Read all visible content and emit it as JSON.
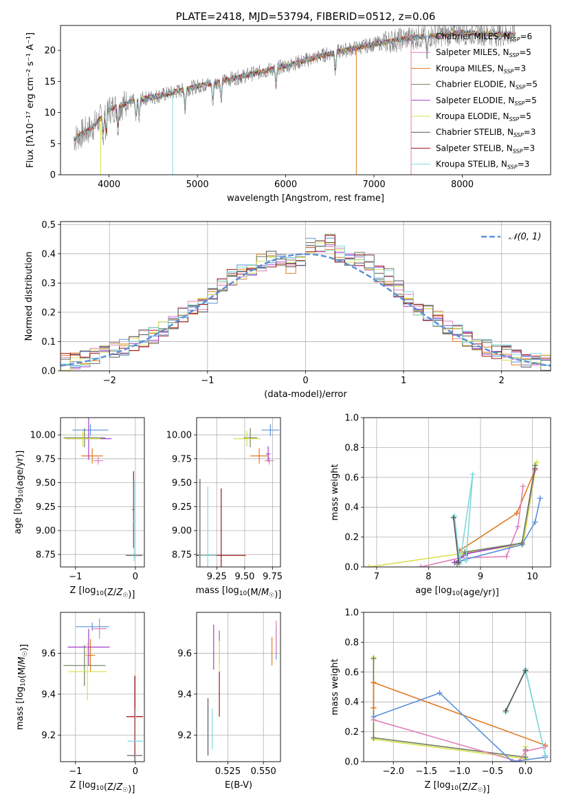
{
  "colors": {
    "chabrier_miles": "#5a8fdc",
    "salpeter_miles": "#e07fb8",
    "kroupa_miles": "#e07a1f",
    "chabrier_elodie": "#6f7f5f",
    "salpeter_elodie": "#a03cc8",
    "kroupa_elodie": "#d8e04a",
    "chabrier_stelib": "#555555",
    "salpeter_stelib": "#a01010",
    "kroupa_stelib": "#7fd8dc",
    "gaussian": "#5b8fd8",
    "grid": "#b0b0b0"
  },
  "chart_data": [
    {
      "type": "line",
      "title": "PLATE=2418, MJD=53794, FIBERID=0512, z=0.06",
      "xlabel": "wavelength [Angstrom, rest frame]",
      "ylabel": "Flux [fλ10⁻¹⁷ erg cm⁻² s⁻¹ A⁻¹]",
      "xlim": [
        3450,
        9000
      ],
      "ylim": [
        0,
        24
      ],
      "xticks": [
        "4000",
        "5000",
        "6000",
        "7000",
        "8000"
      ],
      "yticks": [
        "0",
        "5",
        "10",
        "15",
        "20"
      ],
      "continuum": [
        [
          3600,
          5.8
        ],
        [
          3800,
          7.5
        ],
        [
          4000,
          10.5
        ],
        [
          4300,
          12.0
        ],
        [
          4600,
          12.8
        ],
        [
          5000,
          14.2
        ],
        [
          5500,
          15.8
        ],
        [
          6000,
          17.5
        ],
        [
          6500,
          19.5
        ],
        [
          7000,
          21.0
        ],
        [
          7400,
          22.0
        ],
        [
          8000,
          22.8
        ],
        [
          8600,
          22.5
        ]
      ],
      "legend": [
        {
          "label": "Chabrier MILES, N",
          "sub": "SSP",
          "tail": "=6",
          "color_key": "chabrier_miles"
        },
        {
          "label": "Salpeter MILES, N",
          "sub": "SSP",
          "tail": "=5",
          "color_key": "salpeter_miles"
        },
        {
          "label": "Kroupa MILES, N",
          "sub": "SSP",
          "tail": "=3",
          "color_key": "kroupa_miles"
        },
        {
          "label": "Chabrier ELODIE, N",
          "sub": "SSP",
          "tail": "=5",
          "color_key": "chabrier_elodie"
        },
        {
          "label": "Salpeter ELODIE, N",
          "sub": "SSP",
          "tail": "=5",
          "color_key": "salpeter_elodie"
        },
        {
          "label": "Kroupa ELODIE, N",
          "sub": "SSP",
          "tail": "=5",
          "color_key": "kroupa_elodie"
        },
        {
          "label": "Chabrier STELIB, N",
          "sub": "SSP",
          "tail": "=3",
          "color_key": "chabrier_stelib"
        },
        {
          "label": "Salpeter STELIB, N",
          "sub": "SSP",
          "tail": "=3",
          "color_key": "salpeter_stelib"
        },
        {
          "label": "Kroupa STELIB, N",
          "sub": "SSP",
          "tail": "=3",
          "color_key": "kroupa_stelib"
        }
      ]
    },
    {
      "type": "step",
      "xlabel": "(data-model)/error",
      "ylabel": "Normed distribution",
      "xlim": [
        -2.5,
        2.5
      ],
      "ylim": [
        0,
        0.51
      ],
      "xticks": [
        "−2",
        "−1",
        "0",
        "1",
        "2"
      ],
      "yticks": [
        "0.0",
        "0.1",
        "0.2",
        "0.3",
        "0.4",
        "0.5"
      ],
      "grid": true,
      "bins": [
        -2.5,
        -2.4,
        -2.3,
        -2.2,
        -2.1,
        -2.0,
        -1.9,
        -1.8,
        -1.7,
        -1.6,
        -1.5,
        -1.4,
        -1.3,
        -1.2,
        -1.1,
        -1.0,
        -0.9,
        -0.8,
        -0.7,
        -0.6,
        -0.5,
        -0.4,
        -0.3,
        -0.2,
        -0.1,
        0.0,
        0.1,
        0.2,
        0.3,
        0.4,
        0.5,
        0.6,
        0.7,
        0.8,
        0.9,
        1.0,
        1.1,
        1.2,
        1.3,
        1.4,
        1.5,
        1.6,
        1.7,
        1.8,
        1.9,
        2.0,
        2.1,
        2.2,
        2.3,
        2.4,
        2.5
      ],
      "histogram": [
        0.03,
        0.035,
        0.04,
        0.05,
        0.06,
        0.07,
        0.08,
        0.09,
        0.11,
        0.12,
        0.14,
        0.16,
        0.19,
        0.21,
        0.23,
        0.26,
        0.29,
        0.32,
        0.34,
        0.35,
        0.37,
        0.38,
        0.37,
        0.36,
        0.38,
        0.43,
        0.42,
        0.44,
        0.4,
        0.38,
        0.38,
        0.37,
        0.33,
        0.32,
        0.28,
        0.25,
        0.22,
        0.2,
        0.18,
        0.15,
        0.13,
        0.11,
        0.1,
        0.08,
        0.07,
        0.06,
        0.05,
        0.04,
        0.035,
        0.03
      ],
      "legend": [
        {
          "label": "𝒩(0, 1)",
          "color_key": "gaussian"
        }
      ]
    },
    {
      "type": "scatter",
      "xlabel": "Z [log10(Z/Z☉)]",
      "ylabel": "age  [log10(age/yr)]",
      "xlim": [
        -1.25,
        0.15
      ],
      "ylim": [
        8.62,
        10.18
      ],
      "xticks": [
        "−1",
        "0"
      ],
      "yticks": [
        "8.75",
        "9.00",
        "9.25",
        "9.50",
        "9.75",
        "10.00"
      ],
      "grid": true,
      "points": [
        {
          "color_key": "chabrier_miles",
          "x": -0.75,
          "y": 10.05,
          "xerr": 0.3,
          "yerr": 0.06
        },
        {
          "color_key": "salpeter_miles",
          "x": -0.62,
          "y": 9.73,
          "xerr": 0.08,
          "yerr": 0.04
        },
        {
          "color_key": "kroupa_miles",
          "x": -0.72,
          "y": 9.78,
          "xerr": 0.18,
          "yerr": 0.08
        },
        {
          "color_key": "chabrier_elodie",
          "x": -0.85,
          "y": 9.97,
          "xerr": 0.35,
          "yerr": 0.1
        },
        {
          "color_key": "salpeter_elodie",
          "x": -0.78,
          "y": 9.96,
          "xerr": 0.38,
          "yerr": 0.22
        },
        {
          "color_key": "kroupa_elodie",
          "x": -0.88,
          "y": 9.96,
          "xerr": 0.3,
          "yerr": 0.08
        },
        {
          "color_key": "chabrier_stelib",
          "x": -0.02,
          "y": 8.74,
          "xerr": 0.14,
          "yerr": 0.02
        },
        {
          "color_key": "salpeter_stelib",
          "x": -0.03,
          "y": 9.22,
          "xerr": 0.02,
          "yerr": 0.4
        },
        {
          "color_key": "kroupa_stelib",
          "x": -0.02,
          "y": 9.1,
          "xerr": 0.02,
          "yerr": 0.42
        }
      ]
    },
    {
      "type": "scatter",
      "xlabel": "mass [log10(M/M☉)]",
      "ylabel": "",
      "xlim": [
        9.07,
        9.82
      ],
      "ylim": [
        8.62,
        10.18
      ],
      "xticks": [
        "9.25",
        "9.50",
        "9.75"
      ],
      "yticks": [
        "8.75",
        "9.00",
        "9.25",
        "9.50",
        "9.75",
        "10.00"
      ],
      "grid": true,
      "points": [
        {
          "color_key": "chabrier_miles",
          "x": 9.73,
          "y": 10.05,
          "xerr": 0.08,
          "yerr": 0.06
        },
        {
          "color_key": "salpeter_miles",
          "x": 9.72,
          "y": 9.73,
          "xerr": 0.04,
          "yerr": 0.04
        },
        {
          "color_key": "kroupa_miles",
          "x": 9.63,
          "y": 9.78,
          "xerr": 0.08,
          "yerr": 0.08
        },
        {
          "color_key": "chabrier_elodie",
          "x": 9.55,
          "y": 9.97,
          "xerr": 0.06,
          "yerr": 0.1
        },
        {
          "color_key": "salpeter_elodie",
          "x": 9.71,
          "y": 9.8,
          "xerr": 0.02,
          "yerr": 0.08
        },
        {
          "color_key": "kroupa_elodie",
          "x": 9.52,
          "y": 9.96,
          "xerr": 0.12,
          "yerr": 0.08
        },
        {
          "color_key": "chabrier_stelib",
          "x": 9.1,
          "y": 8.74,
          "xerr": 0.02,
          "yerr": 0.8
        },
        {
          "color_key": "salpeter_stelib",
          "x": 9.29,
          "y": 8.74,
          "xerr": 0.22,
          "yerr": 0.7
        },
        {
          "color_key": "kroupa_stelib",
          "x": 9.17,
          "y": 8.74,
          "xerr": 0.08,
          "yerr": 0.72
        }
      ]
    },
    {
      "type": "line",
      "xlabel": "age  [log10(age/yr)]",
      "ylabel": "mass weight",
      "xlim": [
        6.75,
        10.35
      ],
      "ylim": [
        0,
        1
      ],
      "xticks": [
        "7",
        "8",
        "9",
        "10"
      ],
      "yticks": [
        "0.0",
        "0.2",
        "0.4",
        "0.6",
        "0.8",
        "1.0"
      ],
      "grid": true,
      "series": [
        {
          "color_key": "kroupa_elodie",
          "points": [
            [
              6.85,
              0.0
            ],
            [
              9.82,
              0.15
            ],
            [
              10.08,
              0.7
            ]
          ]
        },
        {
          "color_key": "kroupa_miles",
          "points": [
            [
              8.6,
              0.11
            ],
            [
              9.7,
              0.36
            ],
            [
              10.05,
              0.65
            ]
          ]
        },
        {
          "color_key": "salpeter_miles",
          "points": [
            [
              7.85,
              0.0
            ],
            [
              8.6,
              0.06
            ],
            [
              9.5,
              0.07
            ],
            [
              9.72,
              0.27
            ],
            [
              9.82,
              0.54
            ]
          ]
        },
        {
          "color_key": "chabrier_miles",
          "points": [
            [
              8.6,
              0.04
            ],
            [
              9.8,
              0.15
            ],
            [
              10.05,
              0.3
            ],
            [
              10.15,
              0.46
            ]
          ]
        },
        {
          "color_key": "salpeter_elodie",
          "points": [
            [
              8.5,
              0.03
            ],
            [
              8.75,
              0.09
            ],
            [
              9.8,
              0.16
            ],
            [
              10.05,
              0.66
            ]
          ]
        },
        {
          "color_key": "chabrier_elodie",
          "points": [
            [
              8.55,
              0.02
            ],
            [
              8.7,
              0.1
            ],
            [
              9.8,
              0.16
            ],
            [
              10.05,
              0.68
            ]
          ]
        },
        {
          "color_key": "kroupa_stelib",
          "points": [
            [
              8.5,
              0.34
            ],
            [
              8.6,
              0.02
            ],
            [
              8.85,
              0.62
            ],
            [
              8.72,
              0.04
            ]
          ]
        },
        {
          "color_key": "chabrier_stelib",
          "points": [
            [
              8.48,
              0.33
            ],
            [
              8.58,
              0.03
            ]
          ]
        }
      ]
    },
    {
      "type": "scatter",
      "xlabel": "Z [log10(Z/Z☉)]",
      "ylabel": "mass [log10(M/M☉)]",
      "xlim": [
        -1.25,
        0.15
      ],
      "ylim": [
        9.07,
        9.8
      ],
      "xticks": [
        "−1",
        "0"
      ],
      "yticks": [
        "9.2",
        "9.4",
        "9.6"
      ],
      "grid": true,
      "points": [
        {
          "color_key": "chabrier_miles",
          "x": -0.72,
          "y": 9.73,
          "xerr": 0.28,
          "yerr": 0.02
        },
        {
          "color_key": "salpeter_miles",
          "x": -0.6,
          "y": 9.72,
          "xerr": 0.12,
          "yerr": 0.05
        },
        {
          "color_key": "kroupa_miles",
          "x": -0.75,
          "y": 9.59,
          "xerr": 0.08,
          "yerr": 0.08
        },
        {
          "color_key": "chabrier_elodie",
          "x": -0.85,
          "y": 9.54,
          "xerr": 0.35,
          "yerr": 0.1
        },
        {
          "color_key": "salpeter_elodie",
          "x": -0.78,
          "y": 9.63,
          "xerr": 0.35,
          "yerr": 0.09
        },
        {
          "color_key": "kroupa_elodie",
          "x": -0.8,
          "y": 9.51,
          "xerr": 0.32,
          "yerr": 0.14
        },
        {
          "color_key": "chabrier_stelib",
          "x": -0.01,
          "y": 9.1,
          "xerr": 0.13,
          "yerr": 0.12
        },
        {
          "color_key": "salpeter_stelib",
          "x": -0.01,
          "y": 9.29,
          "xerr": 0.14,
          "yerr": 0.2
        },
        {
          "color_key": "kroupa_stelib",
          "x": 0.0,
          "y": 9.17,
          "xerr": 0.13,
          "yerr": 0.16
        }
      ]
    },
    {
      "type": "scatter",
      "xlabel": "E(B-V)",
      "ylabel": "",
      "xlim": [
        0.503,
        0.562
      ],
      "ylim": [
        9.07,
        9.8
      ],
      "xticks": [
        "0.525",
        "0.550"
      ],
      "yticks": [
        "9.2",
        "9.4",
        "9.6"
      ],
      "grid": true,
      "points": [
        {
          "color_key": "chabrier_miles",
          "x": 0.559,
          "y": 9.65,
          "yerr": 0.08
        },
        {
          "color_key": "salpeter_miles",
          "x": 0.559,
          "y": 9.68,
          "yerr": 0.08
        },
        {
          "color_key": "kroupa_miles",
          "x": 0.556,
          "y": 9.61,
          "yerr": 0.07
        },
        {
          "color_key": "chabrier_elodie",
          "x": 0.519,
          "y": 9.63,
          "yerr": 0.08
        },
        {
          "color_key": "salpeter_elodie",
          "x": 0.515,
          "y": 9.63,
          "yerr": 0.11
        },
        {
          "color_key": "kroupa_elodie",
          "x": 0.519,
          "y": 9.58,
          "yerr": 0.08
        },
        {
          "color_key": "chabrier_stelib",
          "x": 0.511,
          "y": 9.24,
          "yerr": 0.14
        },
        {
          "color_key": "salpeter_stelib",
          "x": 0.519,
          "y": 9.4,
          "yerr": 0.11
        },
        {
          "color_key": "kroupa_stelib",
          "x": 0.514,
          "y": 9.23,
          "yerr": 0.1
        }
      ]
    },
    {
      "type": "line",
      "xlabel": "Z [log10(Z/Z☉)]",
      "ylabel": "mass weight",
      "xlim": [
        -2.45,
        0.38
      ],
      "ylim": [
        0,
        1
      ],
      "xticks": [
        "−2.0",
        "−1.5",
        "−1.0",
        "−0.5",
        "0.0"
      ],
      "yticks": [
        "0.0",
        "0.2",
        "0.4",
        "0.6",
        "0.8",
        "1.0"
      ],
      "grid": true,
      "series": [
        {
          "color_key": "kroupa_elodie",
          "points": [
            [
              -2.3,
              0.7
            ],
            [
              -2.3,
              0.15
            ],
            [
              0.0,
              0.02
            ],
            [
              0.0,
              0.1
            ]
          ]
        },
        {
          "color_key": "chabrier_elodie",
          "points": [
            [
              -2.3,
              0.69
            ],
            [
              -2.3,
              0.16
            ],
            [
              0.0,
              0.03
            ],
            [
              0.0,
              0.08
            ]
          ]
        },
        {
          "color_key": "kroupa_miles",
          "points": [
            [
              -2.3,
              0.53
            ],
            [
              -2.3,
              0.36
            ],
            [
              -2.3,
              0.53
            ],
            [
              0.3,
              0.11
            ]
          ]
        },
        {
          "color_key": "salpeter_miles",
          "points": [
            [
              -2.3,
              0.28
            ],
            [
              -0.1,
              0.0
            ],
            [
              0.0,
              0.07
            ],
            [
              0.3,
              0.1
            ]
          ]
        },
        {
          "color_key": "chabrier_miles",
          "points": [
            [
              -2.3,
              0.3
            ],
            [
              -1.3,
              0.46
            ],
            [
              -0.2,
              0.0
            ],
            [
              0.3,
              0.03
            ],
            [
              0.3,
              0.04
            ]
          ]
        },
        {
          "color_key": "kroupa_stelib",
          "points": [
            [
              -0.3,
              0.33
            ],
            [
              0.0,
              0.62
            ],
            [
              0.3,
              0.04
            ],
            [
              0.0,
              0.61
            ]
          ]
        },
        {
          "color_key": "chabrier_stelib",
          "points": [
            [
              -0.3,
              0.34
            ],
            [
              0.0,
              0.61
            ]
          ]
        }
      ]
    }
  ]
}
